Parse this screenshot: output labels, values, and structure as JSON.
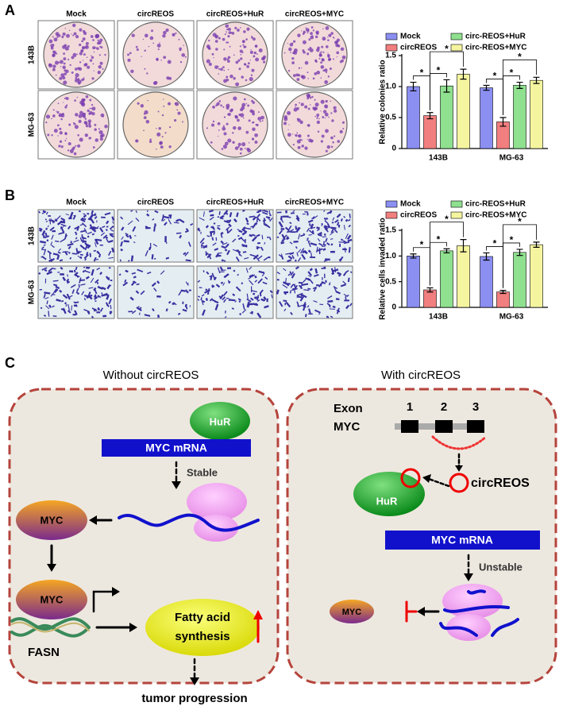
{
  "figure": {
    "panel_labels": [
      "A",
      "B",
      "C"
    ]
  },
  "panel_a": {
    "columns": [
      "Mock",
      "circREOS",
      "circREOS+HuR",
      "circREOS+MYC"
    ],
    "rows": [
      "143B",
      "MG-63"
    ]
  },
  "panel_b": {
    "columns": [
      "Mock",
      "circREOS",
      "circREOS+HuR",
      "circREOS+MYC"
    ],
    "rows": [
      "143B",
      "MG-63"
    ]
  },
  "chart_data": [
    {
      "type": "bar",
      "y_label": "Relative colonies ratio",
      "categories": [
        "143B",
        "MG-63"
      ],
      "series": [
        {
          "name": "Mock",
          "color": "#8b8ff2",
          "values": [
            1.0,
            0.98
          ],
          "errors": [
            0.07,
            0.04
          ]
        },
        {
          "name": "circREOS",
          "color": "#f27f7f",
          "values": [
            0.53,
            0.43
          ],
          "errors": [
            0.05,
            0.07
          ]
        },
        {
          "name": "circ-REOS+HuR",
          "color": "#8fe08f",
          "values": [
            1.01,
            1.02
          ],
          "errors": [
            0.1,
            0.05
          ]
        },
        {
          "name": "circ-REOS+MYC",
          "color": "#f5f5a0",
          "values": [
            1.2,
            1.1
          ],
          "errors": [
            0.08,
            0.05
          ]
        }
      ],
      "ylim": [
        0,
        1.5
      ],
      "yticks": [
        0,
        0.5,
        {
          "value": 1,
          "label": "1.0"
        },
        1.5
      ],
      "annotations": [
        "*",
        "*",
        "*",
        "*",
        "*",
        "*"
      ],
      "legend": "top"
    },
    {
      "type": "bar",
      "y_label": "Relative cells invaded ratio",
      "categories": [
        "143B",
        "MG-63"
      ],
      "series": [
        {
          "name": "Mock",
          "color": "#8b8ff2",
          "values": [
            1.0,
            0.99
          ],
          "errors": [
            0.04,
            0.07
          ]
        },
        {
          "name": "circREOS",
          "color": "#f27f7f",
          "values": [
            0.34,
            0.3
          ],
          "errors": [
            0.04,
            0.03
          ]
        },
        {
          "name": "circ-REOS+HuR",
          "color": "#8fe08f",
          "values": [
            1.1,
            1.07
          ],
          "errors": [
            0.04,
            0.06
          ]
        },
        {
          "name": "circ-REOS+MYC",
          "color": "#f5f5a0",
          "values": [
            1.2,
            1.22
          ],
          "errors": [
            0.12,
            0.05
          ]
        }
      ],
      "ylim": [
        0,
        1.5
      ],
      "yticks": [
        0,
        0.5,
        {
          "value": 1,
          "label": "1.0"
        },
        1.5
      ],
      "annotations": [
        "*",
        "*",
        "*",
        "*",
        "*",
        "*"
      ],
      "legend": "top"
    }
  ],
  "diagram": {
    "left": {
      "title": "Without circREOS",
      "hur": "HuR",
      "mrna": "MYC mRNA",
      "stable": "Stable",
      "myc_top": "MYC",
      "myc_bottom": "MYC",
      "fasn": "FASN",
      "fatty_acid": [
        "Fatty acid",
        "synthesis"
      ],
      "outcome": "tumor progression"
    },
    "right": {
      "title": "With circREOS",
      "exon": "Exon",
      "gene": "MYC",
      "exon_numbers": [
        "1",
        "2",
        "3"
      ],
      "circ": "circREOS",
      "hur": "HuR",
      "mrna": "MYC mRNA",
      "unstable": "Unstable",
      "myc": "MYC"
    }
  }
}
